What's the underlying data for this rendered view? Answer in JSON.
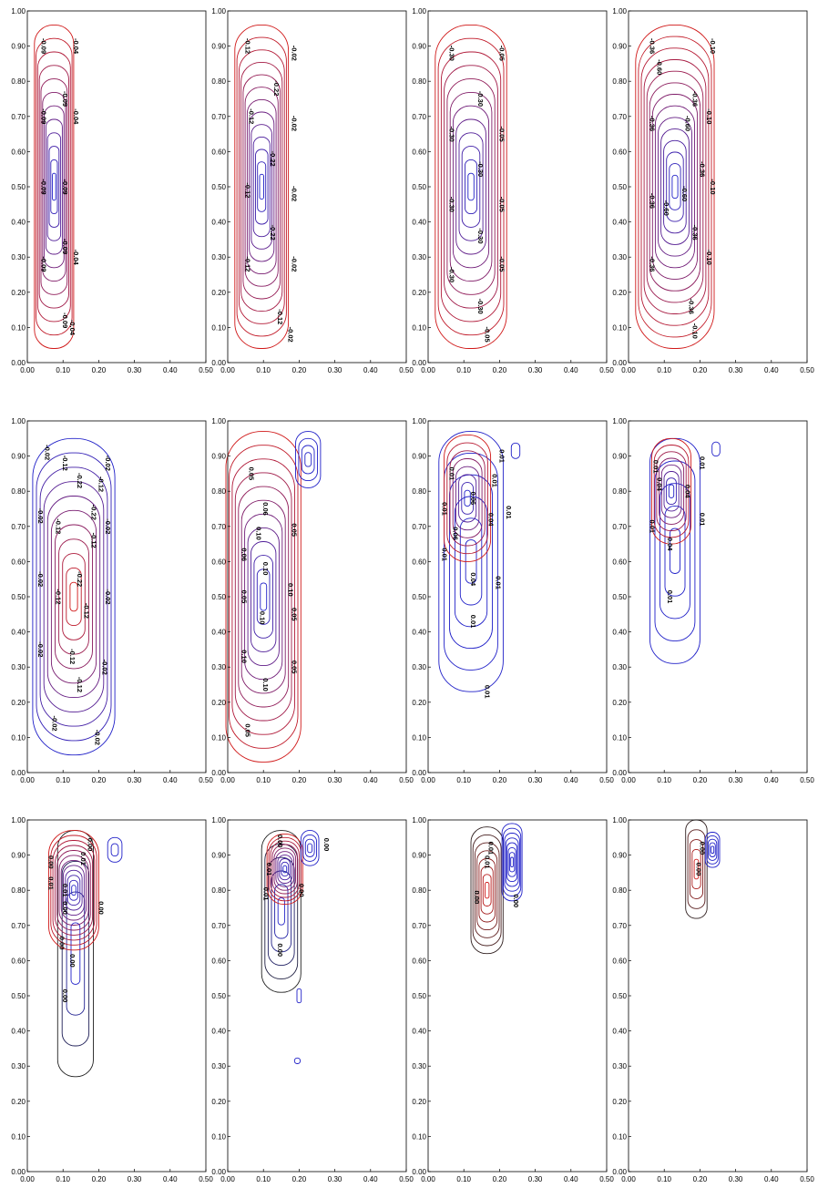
{
  "figure": {
    "rows": 3,
    "cols": 4,
    "colors": {
      "negative": "#1a1aa8",
      "positive": "#cc1a1a",
      "axis": "#000000"
    },
    "x_ticks": [
      "0.00",
      "0.10",
      "0.20",
      "0.30",
      "0.40",
      "0.50"
    ],
    "y_ticks": [
      "0.00",
      "0.10",
      "0.20",
      "0.30",
      "0.40",
      "0.50",
      "0.60",
      "0.70",
      "0.80",
      "0.90",
      "1.00"
    ]
  },
  "chart_data": [
    {
      "type": "contour",
      "xlim": [
        0,
        0.5
      ],
      "ylim": [
        0,
        1
      ],
      "blobs": [
        {
          "cx": 0.075,
          "cy": 0.5,
          "rx": 0.055,
          "ry": 0.46,
          "rings": 12,
          "c0": "#2020c8",
          "c1": "#d01818"
        }
      ],
      "labels": [
        {
          "text": "-0.09",
          "x": 0.04,
          "y": 0.9
        },
        {
          "text": "-0.04",
          "x": 0.13,
          "y": 0.9
        },
        {
          "text": "-0.09",
          "x": 0.1,
          "y": 0.75
        },
        {
          "text": "-0.04",
          "x": 0.13,
          "y": 0.7
        },
        {
          "text": "-0.09",
          "x": 0.04,
          "y": 0.7
        },
        {
          "text": "-0.09",
          "x": 0.04,
          "y": 0.5
        },
        {
          "text": "-0.09",
          "x": 0.1,
          "y": 0.5
        },
        {
          "text": "-0.04",
          "x": 0.13,
          "y": 0.3
        },
        {
          "text": "-0.09",
          "x": 0.1,
          "y": 0.33
        },
        {
          "text": "-0.09",
          "x": 0.04,
          "y": 0.28
        },
        {
          "text": "-0.09",
          "x": 0.1,
          "y": 0.12
        },
        {
          "text": "-0.04",
          "x": 0.12,
          "y": 0.1
        }
      ]
    },
    {
      "type": "contour",
      "xlim": [
        0,
        0.5
      ],
      "ylim": [
        0,
        1
      ],
      "blobs": [
        {
          "cx": 0.095,
          "cy": 0.5,
          "rx": 0.075,
          "ry": 0.46,
          "rings": 13,
          "c0": "#2020c8",
          "c1": "#d01818"
        }
      ],
      "labels": [
        {
          "text": "-0.12",
          "x": 0.05,
          "y": 0.9
        },
        {
          "text": "-0.02",
          "x": 0.18,
          "y": 0.88
        },
        {
          "text": "-0.22",
          "x": 0.13,
          "y": 0.78
        },
        {
          "text": "-0.12",
          "x": 0.06,
          "y": 0.7
        },
        {
          "text": "-0.02",
          "x": 0.18,
          "y": 0.68
        },
        {
          "text": "-0.22",
          "x": 0.12,
          "y": 0.58
        },
        {
          "text": "-0.12",
          "x": 0.05,
          "y": 0.49
        },
        {
          "text": "-0.02",
          "x": 0.18,
          "y": 0.48
        },
        {
          "text": "-0.22",
          "x": 0.12,
          "y": 0.37
        },
        {
          "text": "-0.12",
          "x": 0.05,
          "y": 0.28
        },
        {
          "text": "-0.02",
          "x": 0.18,
          "y": 0.28
        },
        {
          "text": "-0.12",
          "x": 0.14,
          "y": 0.13
        },
        {
          "text": "-0.02",
          "x": 0.17,
          "y": 0.08
        }
      ]
    },
    {
      "type": "contour",
      "xlim": [
        0,
        0.5
      ],
      "ylim": [
        0,
        1
      ],
      "blobs": [
        {
          "cx": 0.12,
          "cy": 0.5,
          "rx": 0.1,
          "ry": 0.46,
          "rings": 12,
          "c0": "#2020c8",
          "c1": "#d01818"
        }
      ],
      "labels": [
        {
          "text": "-0.30",
          "x": 0.06,
          "y": 0.88
        },
        {
          "text": "-0.05",
          "x": 0.2,
          "y": 0.88
        },
        {
          "text": "-0.30",
          "x": 0.14,
          "y": 0.75
        },
        {
          "text": "-0.30",
          "x": 0.06,
          "y": 0.65
        },
        {
          "text": "-0.05",
          "x": 0.2,
          "y": 0.65
        },
        {
          "text": "-0.30",
          "x": 0.14,
          "y": 0.55
        },
        {
          "text": "-0.30",
          "x": 0.06,
          "y": 0.45
        },
        {
          "text": "-0.05",
          "x": 0.2,
          "y": 0.45
        },
        {
          "text": "-0.30",
          "x": 0.14,
          "y": 0.36
        },
        {
          "text": "-0.30",
          "x": 0.06,
          "y": 0.25
        },
        {
          "text": "-0.05",
          "x": 0.2,
          "y": 0.28
        },
        {
          "text": "-0.30",
          "x": 0.14,
          "y": 0.16
        },
        {
          "text": "-0.05",
          "x": 0.16,
          "y": 0.08
        }
      ]
    },
    {
      "type": "contour",
      "xlim": [
        0,
        0.5
      ],
      "ylim": [
        0,
        1
      ],
      "blobs": [
        {
          "cx": 0.13,
          "cy": 0.5,
          "rx": 0.11,
          "ry": 0.46,
          "rings": 14,
          "c0": "#2020c8",
          "c1": "#d01818"
        }
      ],
      "labels": [
        {
          "text": "-0.36",
          "x": 0.06,
          "y": 0.9
        },
        {
          "text": "-0.10",
          "x": 0.23,
          "y": 0.9
        },
        {
          "text": "-0.60",
          "x": 0.08,
          "y": 0.84
        },
        {
          "text": "-0.36",
          "x": 0.18,
          "y": 0.75
        },
        {
          "text": "-0.36",
          "x": 0.06,
          "y": 0.68
        },
        {
          "text": "-0.60",
          "x": 0.16,
          "y": 0.68
        },
        {
          "text": "-0.10",
          "x": 0.22,
          "y": 0.7
        },
        {
          "text": "-0.36",
          "x": 0.2,
          "y": 0.55
        },
        {
          "text": "-0.60",
          "x": 0.15,
          "y": 0.48
        },
        {
          "text": "-0.10",
          "x": 0.23,
          "y": 0.5
        },
        {
          "text": "-0.36",
          "x": 0.06,
          "y": 0.46
        },
        {
          "text": "-0.60",
          "x": 0.1,
          "y": 0.44
        },
        {
          "text": "-0.36",
          "x": 0.18,
          "y": 0.37
        },
        {
          "text": "-0.10",
          "x": 0.22,
          "y": 0.3
        },
        {
          "text": "-0.36",
          "x": 0.06,
          "y": 0.28
        },
        {
          "text": "-0.36",
          "x": 0.17,
          "y": 0.16
        },
        {
          "text": "-0.10",
          "x": 0.18,
          "y": 0.09
        }
      ]
    },
    {
      "type": "contour",
      "xlim": [
        0,
        0.5
      ],
      "ylim": [
        0,
        1
      ],
      "blobs": [
        {
          "cx": 0.13,
          "cy": 0.5,
          "rx": 0.115,
          "ry": 0.45,
          "rings": 11,
          "c0": "#d01818",
          "c1": "#2020c8"
        }
      ],
      "labels": [
        {
          "text": "-0.02",
          "x": 0.05,
          "y": 0.91
        },
        {
          "text": "-0.12",
          "x": 0.1,
          "y": 0.88
        },
        {
          "text": "-0.02",
          "x": 0.22,
          "y": 0.88
        },
        {
          "text": "-0.22",
          "x": 0.14,
          "y": 0.83
        },
        {
          "text": "-0.12",
          "x": 0.2,
          "y": 0.82
        },
        {
          "text": "-0.22",
          "x": 0.18,
          "y": 0.74
        },
        {
          "text": "-0.02",
          "x": 0.03,
          "y": 0.73
        },
        {
          "text": "-0.12",
          "x": 0.08,
          "y": 0.7
        },
        {
          "text": "-0.02",
          "x": 0.22,
          "y": 0.7
        },
        {
          "text": "-0.12",
          "x": 0.18,
          "y": 0.66
        },
        {
          "text": "-0.22",
          "x": 0.14,
          "y": 0.55
        },
        {
          "text": "-0.02",
          "x": 0.03,
          "y": 0.55
        },
        {
          "text": "-0.12",
          "x": 0.08,
          "y": 0.5
        },
        {
          "text": "-0.02",
          "x": 0.22,
          "y": 0.5
        },
        {
          "text": "-0.12",
          "x": 0.16,
          "y": 0.46
        },
        {
          "text": "-0.02",
          "x": 0.03,
          "y": 0.35
        },
        {
          "text": "-0.12",
          "x": 0.12,
          "y": 0.33
        },
        {
          "text": "-0.02",
          "x": 0.21,
          "y": 0.3
        },
        {
          "text": "-0.12",
          "x": 0.14,
          "y": 0.25
        },
        {
          "text": "-0.02",
          "x": 0.07,
          "y": 0.14
        },
        {
          "text": "-0.02",
          "x": 0.19,
          "y": 0.1
        }
      ]
    },
    {
      "type": "contour",
      "xlim": [
        0,
        0.5
      ],
      "ylim": [
        0,
        1
      ],
      "blobs": [
        {
          "cx": 0.1,
          "cy": 0.5,
          "rx": 0.105,
          "ry": 0.47,
          "rings": 12,
          "c0": "#2020c8",
          "c1": "#d01818"
        },
        {
          "cx": 0.225,
          "cy": 0.89,
          "rx": 0.035,
          "ry": 0.08,
          "rings": 4,
          "c0": "#2020c8",
          "c1": "#2020c8"
        }
      ],
      "labels": [
        {
          "text": "0.05",
          "x": 0.06,
          "y": 0.85
        },
        {
          "text": "0.06",
          "x": 0.1,
          "y": 0.75
        },
        {
          "text": "0.10",
          "x": 0.08,
          "y": 0.68
        },
        {
          "text": "0.05",
          "x": 0.18,
          "y": 0.69
        },
        {
          "text": "0.06",
          "x": 0.04,
          "y": 0.62
        },
        {
          "text": "0.10",
          "x": 0.1,
          "y": 0.58
        },
        {
          "text": "0.05",
          "x": 0.04,
          "y": 0.5
        },
        {
          "text": "0.10",
          "x": 0.17,
          "y": 0.52
        },
        {
          "text": "0.10",
          "x": 0.09,
          "y": 0.44
        },
        {
          "text": "0.05",
          "x": 0.18,
          "y": 0.45
        },
        {
          "text": "0.10",
          "x": 0.04,
          "y": 0.33
        },
        {
          "text": "0.10",
          "x": 0.1,
          "y": 0.25
        },
        {
          "text": "0.05",
          "x": 0.18,
          "y": 0.3
        },
        {
          "text": "0.05",
          "x": 0.05,
          "y": 0.12
        }
      ]
    },
    {
      "type": "contour",
      "xlim": [
        0,
        0.5
      ],
      "ylim": [
        0,
        1
      ],
      "blobs": [
        {
          "cx": 0.12,
          "cy": 0.6,
          "rx": 0.09,
          "ry": 0.37,
          "rings": 6,
          "c0": "#2020c8",
          "c1": "#2020c8"
        },
        {
          "cx": 0.11,
          "cy": 0.78,
          "rx": 0.065,
          "ry": 0.18,
          "rings": 8,
          "c0": "#2020c8",
          "c1": "#d01818"
        },
        {
          "cx": 0.245,
          "cy": 0.915,
          "rx": 0.012,
          "ry": 0.022,
          "rings": 1,
          "c0": "#2020c8",
          "c1": "#2020c8"
        }
      ],
      "labels": [
        {
          "text": "0.01",
          "x": 0.2,
          "y": 0.9
        },
        {
          "text": "0.01",
          "x": 0.06,
          "y": 0.85
        },
        {
          "text": "0.01",
          "x": 0.18,
          "y": 0.83
        },
        {
          "text": "0.06",
          "x": 0.12,
          "y": 0.78
        },
        {
          "text": "0.01",
          "x": 0.04,
          "y": 0.75
        },
        {
          "text": "0.04",
          "x": 0.17,
          "y": 0.72
        },
        {
          "text": "0.01",
          "x": 0.22,
          "y": 0.74
        },
        {
          "text": "0.06",
          "x": 0.07,
          "y": 0.68
        },
        {
          "text": "0.01",
          "x": 0.04,
          "y": 0.62
        },
        {
          "text": "0.04",
          "x": 0.12,
          "y": 0.55
        },
        {
          "text": "0.01",
          "x": 0.19,
          "y": 0.54
        },
        {
          "text": "0.01",
          "x": 0.12,
          "y": 0.43
        },
        {
          "text": "0.01",
          "x": 0.16,
          "y": 0.23
        }
      ]
    },
    {
      "type": "contour",
      "xlim": [
        0,
        0.5
      ],
      "ylim": [
        0,
        1
      ],
      "blobs": [
        {
          "cx": 0.13,
          "cy": 0.63,
          "rx": 0.07,
          "ry": 0.32,
          "rings": 5,
          "c0": "#2020c8",
          "c1": "#2020c8"
        },
        {
          "cx": 0.12,
          "cy": 0.8,
          "rx": 0.055,
          "ry": 0.15,
          "rings": 8,
          "c0": "#2020c8",
          "c1": "#d01818"
        },
        {
          "cx": 0.245,
          "cy": 0.92,
          "rx": 0.011,
          "ry": 0.02,
          "rings": 1,
          "c0": "#2020c8",
          "c1": "#2020c8"
        }
      ],
      "labels": [
        {
          "text": "0.01",
          "x": 0.07,
          "y": 0.87
        },
        {
          "text": "0.01",
          "x": 0.2,
          "y": 0.88
        },
        {
          "text": "0.04",
          "x": 0.08,
          "y": 0.82
        },
        {
          "text": "0.04",
          "x": 0.16,
          "y": 0.8
        },
        {
          "text": "0.01",
          "x": 0.06,
          "y": 0.7
        },
        {
          "text": "0.01",
          "x": 0.2,
          "y": 0.72
        },
        {
          "text": "0.04",
          "x": 0.11,
          "y": 0.65
        },
        {
          "text": "0.01",
          "x": 0.11,
          "y": 0.5
        }
      ]
    },
    {
      "type": "contour",
      "xlim": [
        0,
        0.5
      ],
      "ylim": [
        0,
        1
      ],
      "blobs": [
        {
          "cx": 0.135,
          "cy": 0.62,
          "rx": 0.05,
          "ry": 0.35,
          "rings": 4,
          "c0": "#2020c8",
          "c1": "#202020"
        },
        {
          "cx": 0.13,
          "cy": 0.8,
          "rx": 0.07,
          "ry": 0.17,
          "rings": 12,
          "c0": "#2020c8",
          "c1": "#d01818"
        },
        {
          "cx": 0.245,
          "cy": 0.915,
          "rx": 0.02,
          "ry": 0.035,
          "rings": 2,
          "c0": "#2020c8",
          "c1": "#2020c8"
        }
      ],
      "labels": [
        {
          "text": "0.00",
          "x": 0.17,
          "y": 0.93
        },
        {
          "text": "0.01",
          "x": 0.15,
          "y": 0.89
        },
        {
          "text": "0.00",
          "x": 0.06,
          "y": 0.88
        },
        {
          "text": "0.01",
          "x": 0.06,
          "y": 0.82
        },
        {
          "text": "0.00",
          "x": 0.1,
          "y": 0.75
        },
        {
          "text": "0.01",
          "x": 0.1,
          "y": 0.8
        },
        {
          "text": "0.00",
          "x": 0.2,
          "y": 0.75
        },
        {
          "text": "0.00",
          "x": 0.09,
          "y": 0.65
        },
        {
          "text": "0.00",
          "x": 0.12,
          "y": 0.6
        },
        {
          "text": "0.00",
          "x": 0.1,
          "y": 0.5
        }
      ]
    },
    {
      "type": "contour",
      "xlim": [
        0,
        0.5
      ],
      "ylim": [
        0,
        1
      ],
      "blobs": [
        {
          "cx": 0.15,
          "cy": 0.74,
          "rx": 0.055,
          "ry": 0.23,
          "rings": 6,
          "c0": "#2020c8",
          "c1": "#202020"
        },
        {
          "cx": 0.16,
          "cy": 0.86,
          "rx": 0.05,
          "ry": 0.1,
          "rings": 10,
          "c0": "#2020c8",
          "c1": "#d01818"
        },
        {
          "cx": 0.23,
          "cy": 0.92,
          "rx": 0.025,
          "ry": 0.05,
          "rings": 4,
          "c0": "#2020c8",
          "c1": "#2020c8"
        },
        {
          "cx": 0.2,
          "cy": 0.5,
          "rx": 0.006,
          "ry": 0.02,
          "rings": 1,
          "c0": "#2020c8",
          "c1": "#2020c8"
        },
        {
          "cx": 0.195,
          "cy": 0.315,
          "rx": 0.008,
          "ry": 0.008,
          "rings": 1,
          "c0": "#2020c8",
          "c1": "#2020c8"
        }
      ],
      "labels": [
        {
          "text": "0.00",
          "x": 0.14,
          "y": 0.94
        },
        {
          "text": "0.00",
          "x": 0.27,
          "y": 0.93
        },
        {
          "text": "0.01",
          "x": 0.11,
          "y": 0.86
        },
        {
          "text": "0.00",
          "x": 0.2,
          "y": 0.8
        },
        {
          "text": "0.01",
          "x": 0.1,
          "y": 0.79
        },
        {
          "text": "0.00",
          "x": 0.14,
          "y": 0.63
        }
      ]
    },
    {
      "type": "contour",
      "xlim": [
        0,
        0.5
      ],
      "ylim": [
        0,
        1
      ],
      "blobs": [
        {
          "cx": 0.165,
          "cy": 0.8,
          "rx": 0.045,
          "ry": 0.18,
          "rings": 8,
          "c0": "#d01818",
          "c1": "#302020"
        },
        {
          "cx": 0.235,
          "cy": 0.88,
          "rx": 0.028,
          "ry": 0.11,
          "rings": 8,
          "c0": "#2020c8",
          "c1": "#2020c8"
        }
      ],
      "labels": [
        {
          "text": "0.01",
          "x": 0.17,
          "y": 0.92
        },
        {
          "text": "0.01",
          "x": 0.16,
          "y": 0.88
        },
        {
          "text": "0.00",
          "x": 0.13,
          "y": 0.78
        },
        {
          "text": "0.00",
          "x": 0.24,
          "y": 0.77
        }
      ]
    },
    {
      "type": "contour",
      "xlim": [
        0,
        0.5
      ],
      "ylim": [
        0,
        1
      ],
      "blobs": [
        {
          "cx": 0.19,
          "cy": 0.86,
          "rx": 0.03,
          "ry": 0.14,
          "rings": 5,
          "c0": "#d01818",
          "c1": "#302020"
        },
        {
          "cx": 0.235,
          "cy": 0.915,
          "rx": 0.02,
          "ry": 0.05,
          "rings": 5,
          "c0": "#2020c8",
          "c1": "#2020c8"
        }
      ],
      "labels": [
        {
          "text": "0.00",
          "x": 0.2,
          "y": 0.92
        },
        {
          "text": "0.00",
          "x": 0.19,
          "y": 0.86
        }
      ]
    }
  ]
}
